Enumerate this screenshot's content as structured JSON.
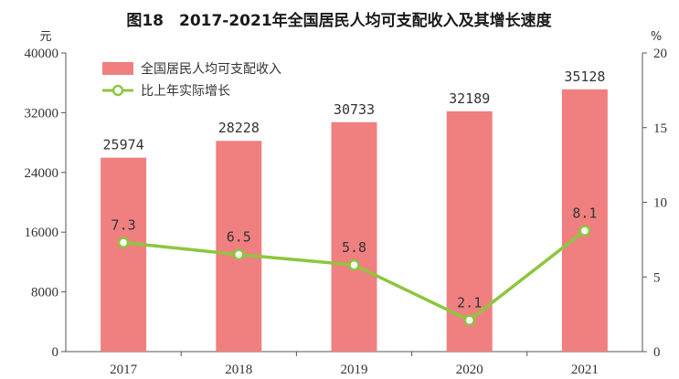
{
  "chart_data": {
    "type": "bar",
    "title": "图18　2017-2021年全国居民人均可支配收入及其增长速度",
    "categories": [
      "2017",
      "2018",
      "2019",
      "2020",
      "2021"
    ],
    "left_axis": {
      "unit": "元",
      "ylim": [
        0,
        40000
      ],
      "ticks": [
        "0",
        "8000",
        "16000",
        "24000",
        "32000",
        "40000"
      ]
    },
    "right_axis": {
      "unit": "%",
      "ylim": [
        0,
        20
      ],
      "ticks": [
        "0",
        "5",
        "10",
        "15",
        "20"
      ]
    },
    "series": [
      {
        "name": "全国居民人均可支配收入",
        "type": "bar",
        "axis": "left",
        "color": "#f08080",
        "values": [
          25974,
          28228,
          30733,
          32189,
          35128
        ],
        "labels": [
          "25974",
          "28228",
          "30733",
          "32189",
          "35128"
        ]
      },
      {
        "name": "比上年实际增长",
        "type": "line",
        "axis": "right",
        "color": "#8dc63f",
        "values": [
          7.3,
          6.5,
          5.8,
          2.1,
          8.1
        ],
        "labels": [
          "7.3",
          "6.5",
          "5.8",
          "2.1",
          "8.1"
        ]
      }
    ],
    "legend_position": "top-left",
    "grid": false
  }
}
